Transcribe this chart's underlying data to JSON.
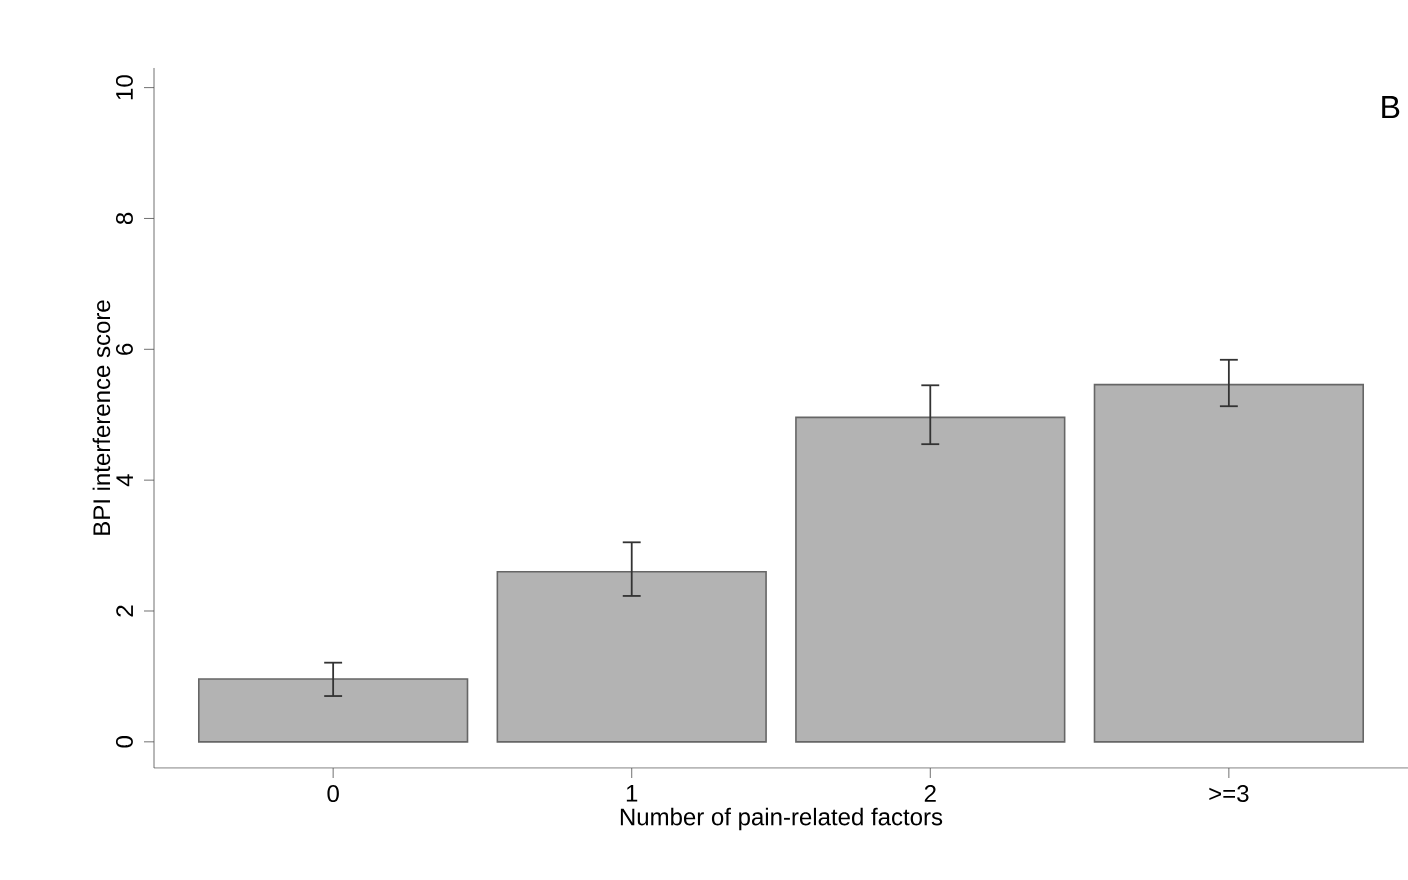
{
  "chart_data": {
    "type": "bar",
    "xlabel": "Number of pain-related factors",
    "ylabel": "BPI interference score",
    "categories": [
      "0",
      "1",
      "2",
      ">=3"
    ],
    "values": [
      0.96,
      2.6,
      4.96,
      5.46
    ],
    "errors": [
      [
        0.7,
        1.21
      ],
      [
        2.23,
        3.05
      ],
      [
        4.55,
        5.45
      ],
      [
        5.13,
        5.84
      ]
    ],
    "color": "#b3b3b3",
    "ylim": [
      -0.4,
      10.3
    ],
    "yticks": [
      0,
      2,
      4,
      6,
      8,
      10
    ],
    "annotations": [
      "B"
    ]
  }
}
